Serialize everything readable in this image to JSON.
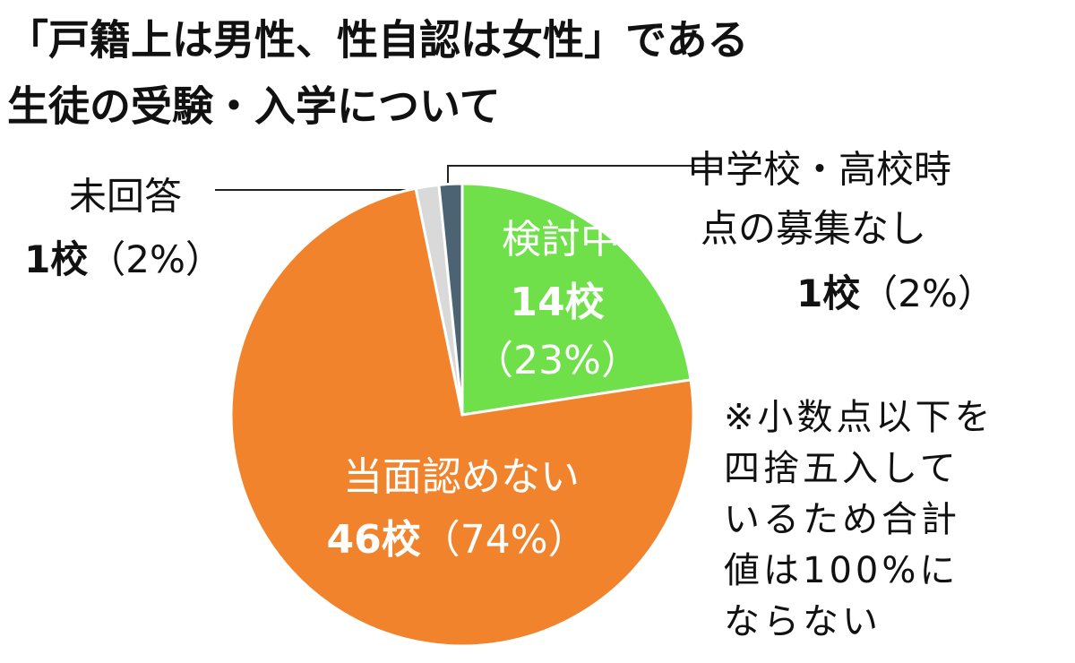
{
  "chart_data": {
    "type": "pie",
    "title": [
      "「戸籍上は男性、性自認は女性」である",
      "生徒の受験・入学について"
    ],
    "categories": [
      [
        "検討中"
      ],
      [
        "当面認めない"
      ],
      [
        "未回答"
      ],
      [
        "中学校・高校時",
        "点の募集なし"
      ]
    ],
    "values": [
      14,
      46,
      1,
      1
    ],
    "value_labels": [
      "14校",
      "46校",
      "1校",
      "1校"
    ],
    "percentages": [
      23,
      74,
      2,
      2
    ],
    "percentage_labels": [
      "（23%）",
      "（74%）",
      "（2%）",
      "（2%）"
    ],
    "colors": [
      "#6fe04a",
      "#f0832c",
      "#d9d9d9",
      "#4b6373"
    ],
    "note": [
      "※小数点以下を",
      "四捨五入して",
      "いるため合計",
      "値は100%に",
      "ならない"
    ]
  }
}
